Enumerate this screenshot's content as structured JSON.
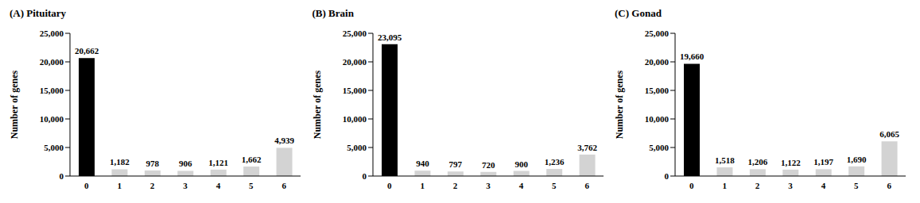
{
  "chart_data": [
    {
      "type": "bar",
      "title": "(A) Pituitary",
      "ylabel": "Number of genes",
      "categories": [
        "0",
        "1",
        "2",
        "3",
        "4",
        "5",
        "6"
      ],
      "values": [
        20662,
        1182,
        978,
        906,
        1121,
        1662,
        4939
      ],
      "value_labels": [
        "20,662",
        "1,182",
        "978",
        "906",
        "1,121",
        "1,662",
        "4,939"
      ],
      "data_labels": true,
      "colors": [
        "#000000",
        "#d3d3d3",
        "#d3d3d3",
        "#d3d3d3",
        "#d3d3d3",
        "#d3d3d3",
        "#d3d3d3"
      ],
      "ylim": [
        0,
        25000
      ],
      "yticks": [
        0,
        {
          "value": 5000,
          "label": "5,000"
        },
        {
          "value": 10000,
          "label": "10,000"
        },
        {
          "value": 15000,
          "label": "15,000"
        },
        {
          "value": 20000,
          "label": "20,000"
        },
        {
          "value": 25000,
          "label": "25,000"
        }
      ],
      "grid": false
    },
    {
      "type": "bar",
      "title": "(B) Brain",
      "ylabel": "Number of genes",
      "categories": [
        "0",
        "1",
        "2",
        "3",
        "4",
        "5",
        "6"
      ],
      "values": [
        23095,
        940,
        797,
        720,
        900,
        1236,
        3762
      ],
      "value_labels": [
        "23,095",
        "940",
        "797",
        "720",
        "900",
        "1,236",
        "3,762"
      ],
      "data_labels": true,
      "colors": [
        "#000000",
        "#d3d3d3",
        "#d3d3d3",
        "#d3d3d3",
        "#d3d3d3",
        "#d3d3d3",
        "#d3d3d3"
      ],
      "ylim": [
        0,
        25000
      ],
      "yticks": [
        0,
        {
          "value": 5000,
          "label": "5,000"
        },
        {
          "value": 10000,
          "label": "10,000"
        },
        {
          "value": 15000,
          "label": "15,000"
        },
        {
          "value": 20000,
          "label": "20,000"
        },
        {
          "value": 25000,
          "label": "25,000"
        }
      ],
      "grid": false
    },
    {
      "type": "bar",
      "title": "(C) Gonad",
      "ylabel": "Number of genes",
      "categories": [
        "0",
        "1",
        "2",
        "3",
        "4",
        "5",
        "6"
      ],
      "values": [
        19660,
        1518,
        1206,
        1122,
        1197,
        1690,
        6065
      ],
      "value_labels": [
        "19,660",
        "1,518",
        "1,206",
        "1,122",
        "1,197",
        "1,690",
        "6,065"
      ],
      "data_labels": true,
      "colors": [
        "#000000",
        "#d3d3d3",
        "#d3d3d3",
        "#d3d3d3",
        "#d3d3d3",
        "#d3d3d3",
        "#d3d3d3"
      ],
      "ylim": [
        0,
        25000
      ],
      "yticks": [
        0,
        {
          "value": 5000,
          "label": "5,000"
        },
        {
          "value": 10000,
          "label": "10,000"
        },
        {
          "value": 15000,
          "label": "15,000"
        },
        {
          "value": 20000,
          "label": "20,000"
        },
        {
          "value": 25000,
          "label": "25,000"
        }
      ],
      "grid": false
    }
  ]
}
